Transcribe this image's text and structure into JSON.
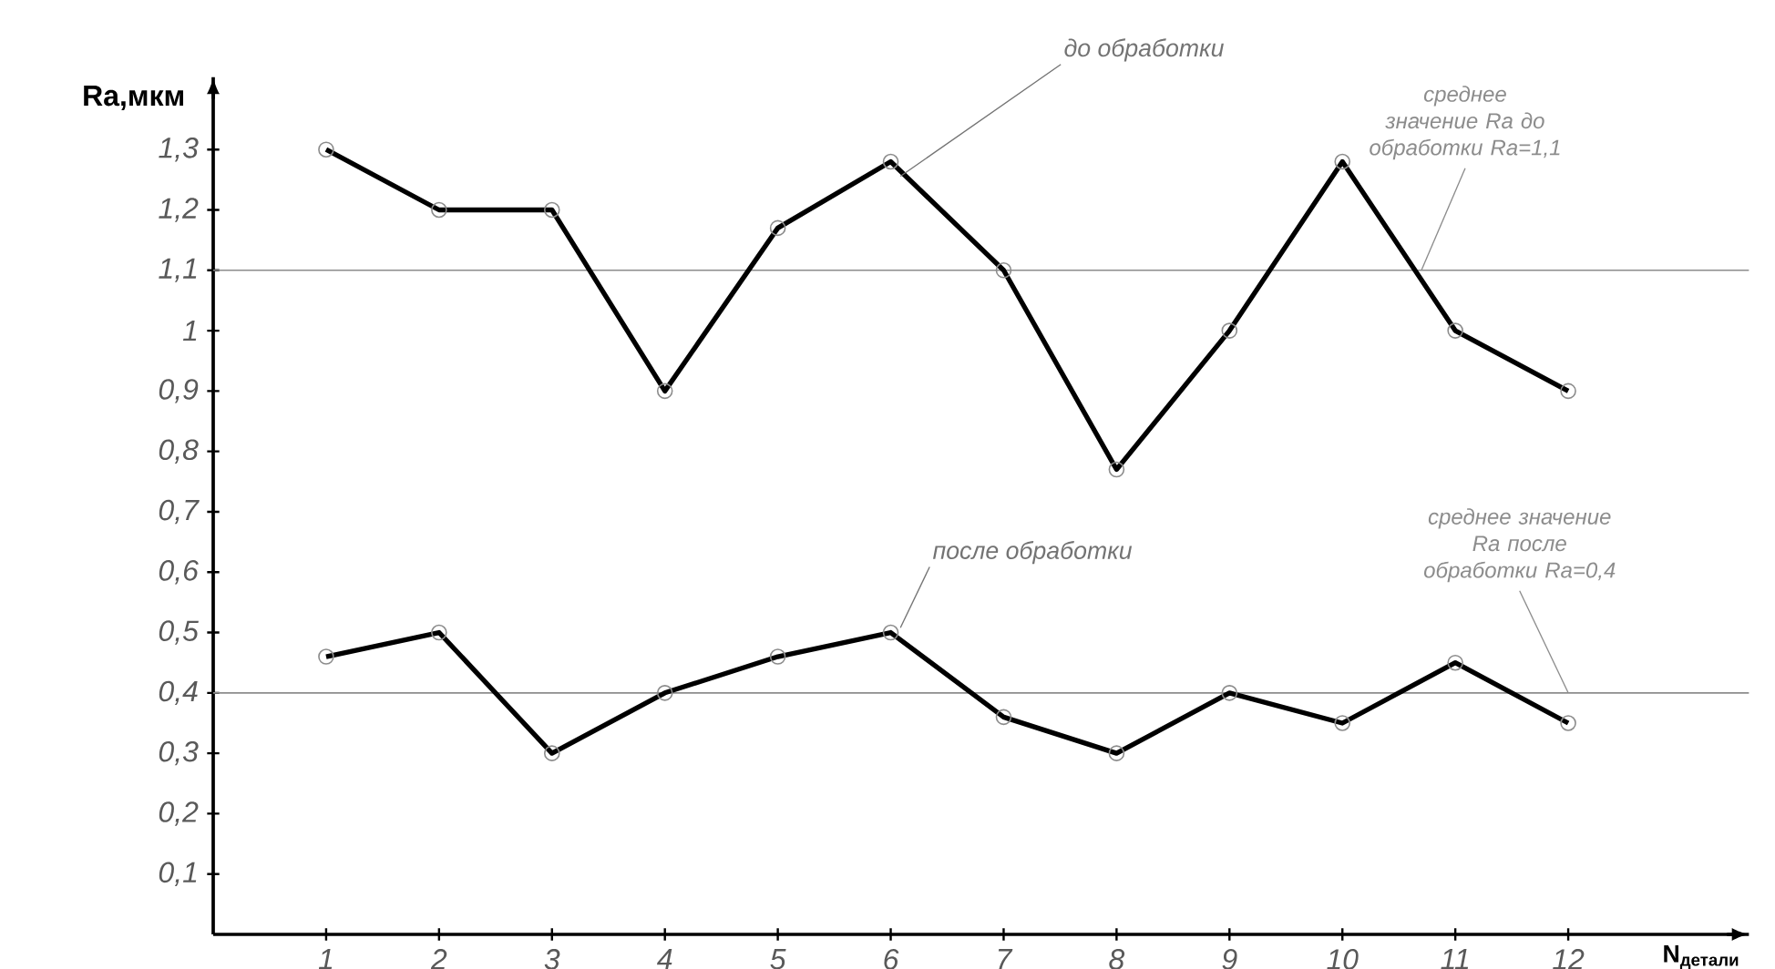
{
  "chart_data": {
    "type": "line",
    "xlabel": "N$_{детали}$",
    "ylabel": "Ra,мкм",
    "categories": [
      "1",
      "2",
      "3",
      "4",
      "5",
      "6",
      "7",
      "8",
      "9",
      "10",
      "11",
      "12"
    ],
    "series": [
      {
        "name": "до обработки",
        "color": "#000000",
        "values": [
          1.3,
          1.2,
          1.2,
          0.9,
          1.17,
          1.28,
          1.1,
          0.77,
          1.0,
          1.28,
          1.0,
          0.9
        ]
      },
      {
        "name": "после обработки",
        "color": "#000000",
        "values": [
          0.46,
          0.5,
          0.3,
          0.4,
          0.46,
          0.5,
          0.36,
          0.3,
          0.4,
          0.35,
          0.45,
          0.35
        ]
      }
    ],
    "ylim": [
      0,
      1.42
    ],
    "yticks": [
      {
        "value": 0.1,
        "label": "0,1"
      },
      {
        "value": 0.2,
        "label": "0,2"
      },
      {
        "value": 0.3,
        "label": "0,3"
      },
      {
        "value": 0.4,
        "label": "0,4"
      },
      {
        "value": 0.5,
        "label": "0,5"
      },
      {
        "value": 0.6,
        "label": "0,6"
      },
      {
        "value": 0.7,
        "label": "0,7"
      },
      {
        "value": 0.8,
        "label": "0,8"
      },
      {
        "value": 0.9,
        "label": "0,9"
      },
      1,
      {
        "value": 1.1,
        "label": "1,1"
      },
      {
        "value": 1.2,
        "label": "1,2"
      },
      {
        "value": 1.3,
        "label": "1,3"
      }
    ],
    "ref_lines": [
      {
        "axis": "y",
        "value": 1.1,
        "label": "среднее значение Ra до обработки Ra=1,1",
        "color": "#8c8c8c"
      },
      {
        "axis": "y",
        "value": 0.4,
        "label": "среднее значение Ra после обработки Ra=0,4",
        "color": "#8c8c8c"
      }
    ],
    "marker": "circle",
    "line_style": "solid",
    "grid": false
  }
}
